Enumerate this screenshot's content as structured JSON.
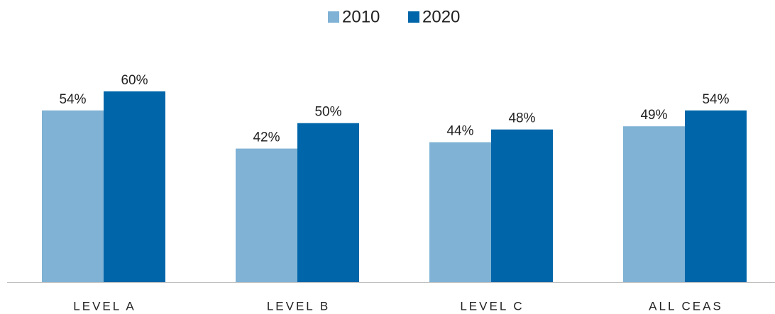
{
  "chart_data": {
    "type": "bar",
    "categories": [
      "LEVEL A",
      "LEVEL B",
      "LEVEL C",
      "ALL CEAS"
    ],
    "series": [
      {
        "name": "2010",
        "color": "#7fb2d5",
        "values": [
          54,
          42,
          44,
          49
        ],
        "value_labels": [
          "54%",
          "42%",
          "44%",
          "49%"
        ]
      },
      {
        "name": "2020",
        "color": "#0066a9",
        "values": [
          60,
          50,
          48,
          54
        ],
        "value_labels": [
          "60%",
          "50%",
          "48%",
          "54%"
        ]
      }
    ],
    "ylim": [
      0,
      70
    ],
    "legend": "top"
  }
}
